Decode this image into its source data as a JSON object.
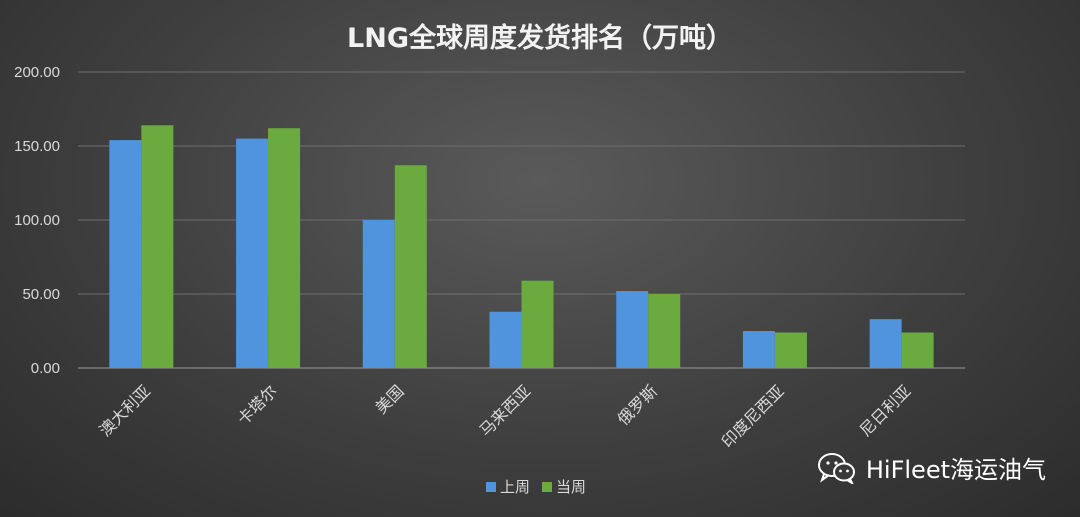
{
  "chart_data": {
    "type": "bar",
    "title": "LNG全球周度发货排名（万吨）",
    "categories": [
      "澳大利亚",
      "卡塔尔",
      "美国",
      "马来西亚",
      "俄罗斯",
      "印度尼西亚",
      "尼日利亚"
    ],
    "series": [
      {
        "name": "上周",
        "values": [
          154,
          155,
          100,
          38,
          52,
          25,
          33
        ],
        "color": "#4f94dc"
      },
      {
        "name": "当周",
        "values": [
          164,
          162,
          137,
          59,
          50,
          24,
          24
        ],
        "color": "#6aaa3f"
      }
    ],
    "y_ticks": [
      "0.00",
      "50.00",
      "100.00",
      "150.00",
      "200.00"
    ],
    "ylim": [
      0,
      200
    ],
    "grid": true,
    "legend_position": "bottom"
  },
  "watermark": {
    "text": "HiFleet海运油气",
    "icon": "wechat-icon"
  }
}
